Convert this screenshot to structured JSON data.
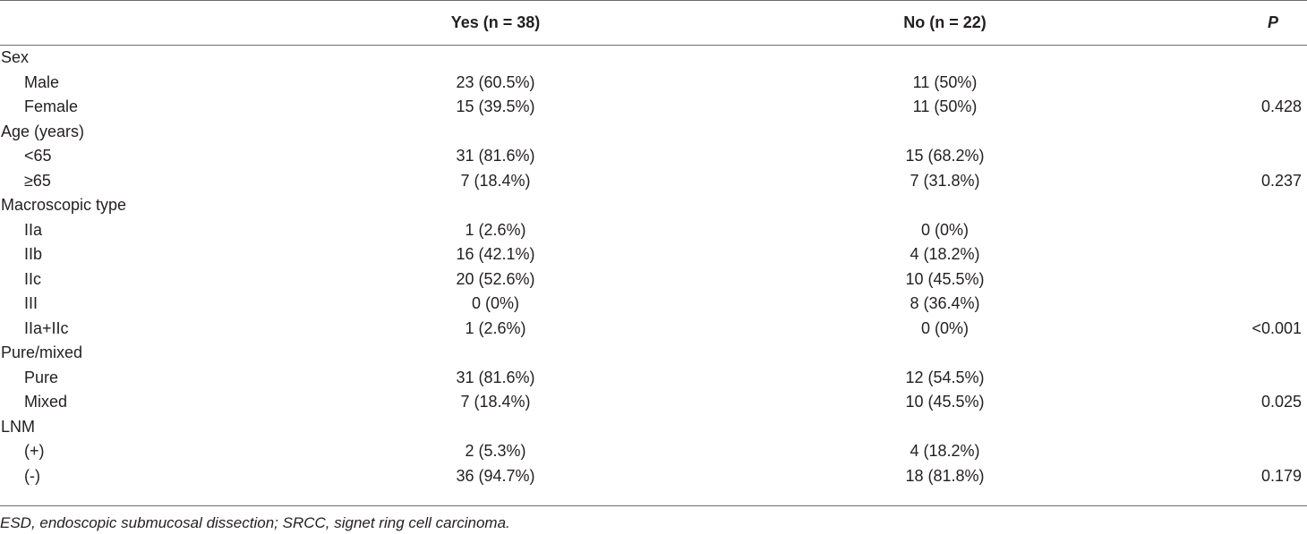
{
  "table": {
    "headers": {
      "label": "",
      "yes": "Yes (n = 38)",
      "no": "No (n = 22)",
      "p": "P"
    },
    "rows": [
      {
        "label": "Sex",
        "yes": "",
        "no": "",
        "p": "",
        "kind": "group"
      },
      {
        "label": "Male",
        "yes": "23 (60.5%)",
        "no": "11 (50%)",
        "p": "",
        "kind": "sub"
      },
      {
        "label": "Female",
        "yes": "15 (39.5%)",
        "no": "11 (50%)",
        "p": "0.428",
        "kind": "sub"
      },
      {
        "label": "Age (years)",
        "yes": "",
        "no": "",
        "p": "",
        "kind": "group"
      },
      {
        "label": "<65",
        "yes": "31 (81.6%)",
        "no": "15 (68.2%)",
        "p": "",
        "kind": "sub"
      },
      {
        "label": "≥65",
        "yes": "7 (18.4%)",
        "no": "7 (31.8%)",
        "p": "0.237",
        "kind": "sub"
      },
      {
        "label": "Macroscopic type",
        "yes": "",
        "no": "",
        "p": "",
        "kind": "group"
      },
      {
        "label": "IIa",
        "yes": "1 (2.6%)",
        "no": "0 (0%)",
        "p": "",
        "kind": "sub"
      },
      {
        "label": "IIb",
        "yes": "16 (42.1%)",
        "no": "4 (18.2%)",
        "p": "",
        "kind": "sub"
      },
      {
        "label": "IIc",
        "yes": "20 (52.6%)",
        "no": "10 (45.5%)",
        "p": "",
        "kind": "sub"
      },
      {
        "label": "III",
        "yes": "0 (0%)",
        "no": "8 (36.4%)",
        "p": "",
        "kind": "sub"
      },
      {
        "label": "IIa+IIc",
        "yes": "1 (2.6%)",
        "no": "0 (0%)",
        "p": "<0.001",
        "kind": "sub"
      },
      {
        "label": "Pure/mixed",
        "yes": "",
        "no": "",
        "p": "",
        "kind": "group"
      },
      {
        "label": "Pure",
        "yes": "31 (81.6%)",
        "no": "12 (54.5%)",
        "p": "",
        "kind": "sub"
      },
      {
        "label": "Mixed",
        "yes": "7 (18.4%)",
        "no": "10 (45.5%)",
        "p": "0.025",
        "kind": "sub"
      },
      {
        "label": "LNM",
        "yes": "",
        "no": "",
        "p": "",
        "kind": "group"
      },
      {
        "label": "(+)",
        "yes": "2 (5.3%)",
        "no": "4 (18.2%)",
        "p": "",
        "kind": "sub"
      },
      {
        "label": "(-)",
        "yes": "36 (94.7%)",
        "no": "18 (81.8%)",
        "p": "0.179",
        "kind": "sub"
      }
    ]
  },
  "footnote": "ESD, endoscopic submucosal dissection; SRCC, signet ring cell carcinoma.",
  "colors": {
    "text": "#231f20",
    "rule": "#6d6e71",
    "background": "#ffffff"
  }
}
